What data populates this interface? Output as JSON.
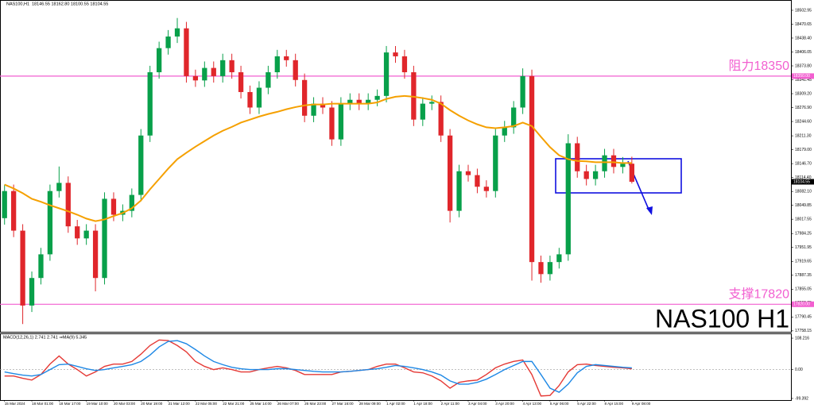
{
  "chart_data": [
    {
      "type": "candlestick",
      "title": "NAS100,H1",
      "last_bar_label": "18146.55 18162.80 18100.55 18104.55",
      "annotation": "NAS100 H1",
      "up_color": "#08a04a",
      "down_color": "#e0262b",
      "moving_average_color": "#f5a000",
      "current_price_color": "#000000",
      "xlim": [
        -0.5,
        86.5
      ],
      "ylim": [
        17756,
        18525
      ],
      "yticks": [
        18502.95,
        18470.65,
        {
          "value": 18438.4,
          "label": "18438.40"
        },
        18406.05,
        {
          "value": 18373.8,
          "label": "18373.80"
        },
        18341.45,
        {
          "value": 18309.2,
          "label": "18309.20"
        },
        {
          "value": 18276.9,
          "label": "18276.90"
        },
        {
          "value": 18244.6,
          "label": "18244.60"
        },
        {
          "value": 18211.3,
          "label": "18211.30"
        },
        {
          "value": 18179,
          "label": "18179.00"
        },
        {
          "value": 18146.7,
          "label": "18146.70"
        },
        {
          "value": 18114.4,
          "label": "18114.40"
        },
        {
          "value": 18082.1,
          "label": "18082.10"
        },
        18049.85,
        18017.55,
        17984.25,
        17951.95,
        17919.65,
        17887.35,
        17855.05,
        17822.75,
        17790.45,
        17758.15
      ],
      "hlines": [
        {
          "value": 18350,
          "label": "阻力18350",
          "price_label": "18350.00",
          "color": "#f25fd0"
        },
        {
          "value": 17820,
          "label": "支撑17820",
          "price_label": "17820.00",
          "color": "#f25fd0"
        }
      ],
      "open": [
        18020,
        18083,
        17991,
        17817,
        17881,
        17936,
        18083,
        18102,
        18001,
        17973,
        17991,
        17881,
        18065,
        18028,
        18037,
        18074,
        18212,
        18359,
        18415,
        18442,
        18461,
        18350,
        18340,
        18369,
        18350,
        18387,
        18359,
        18313,
        18277,
        18323,
        18359,
        18396,
        18387,
        18341,
        18258,
        18286,
        18277,
        18203,
        18286,
        18295,
        18286,
        18295,
        18304,
        18405,
        18396,
        18359,
        18249,
        18286,
        18290,
        18212,
        18037,
        18129,
        18120,
        18093,
        18083,
        18212,
        18231,
        18277,
        18350,
        17918,
        17890,
        17918,
        17936,
        18194,
        18129,
        18111,
        18129,
        18166,
        18139,
        18146.55
      ],
      "high": [
        18098,
        18098,
        18006,
        17896,
        17951,
        18098,
        18140,
        18117,
        18016,
        18006,
        18006,
        18080,
        18080,
        18052,
        18089,
        18227,
        18374,
        18430,
        18457,
        18485,
        18476,
        18365,
        18384,
        18384,
        18402,
        18402,
        18374,
        18328,
        18338,
        18374,
        18411,
        18411,
        18402,
        18356,
        18301,
        18301,
        18292,
        18301,
        18310,
        18310,
        18310,
        18319,
        18420,
        18420,
        18411,
        18374,
        18301,
        18305,
        18305,
        18227,
        18144,
        18144,
        18135,
        18108,
        18227,
        18246,
        18292,
        18368,
        18365,
        17933,
        17933,
        17951,
        18215,
        18209,
        18144,
        18144,
        18181,
        18181,
        18162,
        18162.8
      ],
      "low": [
        18005,
        17976,
        17774,
        17802,
        17866,
        17921,
        18068,
        17986,
        17958,
        17958,
        17850,
        17866,
        18013,
        18013,
        18022,
        18059,
        18197,
        18344,
        18400,
        18427,
        18335,
        18325,
        18325,
        18335,
        18335,
        18344,
        18298,
        18262,
        18262,
        18308,
        18344,
        18372,
        18326,
        18243,
        18243,
        18262,
        18188,
        18188,
        18271,
        18271,
        18271,
        18280,
        18289,
        18381,
        18344,
        18234,
        18234,
        18271,
        18197,
        18010,
        18022,
        18105,
        18078,
        18068,
        18068,
        18197,
        18216,
        18262,
        17875,
        17870,
        17875,
        17903,
        17921,
        18114,
        18096,
        18096,
        18114,
        18124,
        18124,
        18100.55
      ],
      "close": [
        18083,
        17991,
        17817,
        17881,
        17936,
        18083,
        18102,
        18001,
        17973,
        17991,
        17881,
        18065,
        18028,
        18037,
        18074,
        18212,
        18359,
        18415,
        18442,
        18461,
        18350,
        18340,
        18369,
        18350,
        18387,
        18359,
        18313,
        18277,
        18323,
        18359,
        18396,
        18387,
        18341,
        18258,
        18286,
        18277,
        18203,
        18286,
        18295,
        18286,
        18295,
        18304,
        18405,
        18396,
        18359,
        18249,
        18286,
        18290,
        18212,
        18037,
        18129,
        18120,
        18093,
        18083,
        18212,
        18231,
        18277,
        18350,
        17918,
        17890,
        17918,
        17936,
        18194,
        18129,
        18111,
        18129,
        18166,
        18139,
        18146.55,
        18104.55
      ],
      "moving_average": [
        18098,
        18089,
        18078,
        18065,
        18058,
        18050,
        18043,
        18036,
        18028,
        18019,
        18013,
        18017,
        18025,
        18032,
        18043,
        18061,
        18087,
        18111,
        18135,
        18157,
        18172,
        18186,
        18199,
        18212,
        18223,
        18232,
        18242,
        18249,
        18256,
        18262,
        18267,
        18273,
        18278,
        18282,
        18284,
        18284,
        18286,
        18286,
        18286,
        18286,
        18286,
        18289,
        18297,
        18302,
        18304,
        18302,
        18299,
        18295,
        18286,
        18271,
        18258,
        18247,
        18238,
        18231,
        18229,
        18231,
        18234,
        18242,
        18234,
        18209,
        18185,
        18166,
        18157,
        18153,
        18152,
        18150,
        18150,
        18150,
        18148,
        18148
      ]
    },
    {
      "type": "line",
      "title": "MACD(12,26,1) 2.741 2.741 ⇒MA(9) 5.345",
      "xlim": [
        -0.5,
        86.5
      ],
      "ylim": [
        -105,
        122
      ],
      "yticks": [
        108.216,
        {
          "value": 0,
          "label": "0.00"
        },
        -99.392
      ],
      "series": [
        {
          "color": "#e53935",
          "values": [
            -22,
            -22,
            -30,
            -36,
            -17,
            19,
            47,
            19,
            0,
            -22,
            -8,
            11,
            19,
            19,
            28,
            53,
            83,
            102,
            100,
            83,
            61,
            28,
            11,
            0,
            6,
            0,
            -8,
            -8,
            0,
            6,
            11,
            6,
            -3,
            -17,
            -17,
            -17,
            -17,
            -8,
            -6,
            -3,
            0,
            11,
            19,
            19,
            6,
            -8,
            -11,
            -22,
            -39,
            -64,
            -44,
            -39,
            -36,
            -17,
            6,
            19,
            28,
            33,
            -17,
            -91,
            -89,
            -55,
            -8,
            17,
            19,
            14,
            11,
            8,
            6,
            3
          ]
        },
        {
          "color": "#1e88e5",
          "values": [
            -8,
            -14,
            -19,
            -22,
            -17,
            0,
            17,
            19,
            11,
            3,
            -3,
            0,
            6,
            11,
            17,
            28,
            50,
            78,
            97,
            100,
            89,
            69,
            47,
            28,
            17,
            8,
            3,
            0,
            0,
            0,
            3,
            3,
            0,
            -3,
            -6,
            -8,
            -8,
            -8,
            -6,
            -3,
            0,
            3,
            8,
            14,
            11,
            6,
            0,
            -8,
            -19,
            -39,
            -50,
            -50,
            -44,
            -33,
            -17,
            0,
            14,
            28,
            28,
            -17,
            -64,
            -78,
            -50,
            -11,
            11,
            17,
            14,
            11,
            8,
            6
          ]
        }
      ],
      "xticks": [
        {
          "value": 0,
          "label": "15 Mar 2024"
        },
        {
          "value": 3,
          "label": "18 Mar 01:00"
        },
        {
          "value": 6,
          "label": "18 Mar 17:00"
        },
        {
          "value": 9,
          "label": "19 Mar 10:00"
        },
        {
          "value": 12,
          "label": "20 Mar 03:00"
        },
        {
          "value": 15,
          "label": "20 Mar 19:00"
        },
        {
          "value": 18,
          "label": "21 Mar 12:00"
        },
        {
          "value": 21,
          "label": "22 Mar 05:00"
        },
        {
          "value": 24,
          "label": "22 Mar 21:00"
        },
        {
          "value": 27,
          "label": "25 Mar 14:00"
        },
        {
          "value": 30,
          "label": "26 Mar 07:00"
        },
        {
          "value": 33,
          "label": "26 Mar 23:00"
        },
        {
          "value": 36,
          "label": "27 Mar 16:00"
        },
        {
          "value": 39,
          "label": "28 Mar 09:00"
        },
        {
          "value": 42,
          "label": "1 Apr 02:00"
        },
        {
          "value": 45,
          "label": "1 Apr 18:00"
        },
        {
          "value": 48,
          "label": "2 Apr 11:00"
        },
        {
          "value": 51,
          "label": "3 Apr 04:00"
        },
        {
          "value": 54,
          "label": "3 Apr 20:00"
        },
        {
          "value": 57,
          "label": "4 Apr 13:00"
        },
        {
          "value": 60,
          "label": "5 Apr 06:00"
        },
        {
          "value": 63,
          "label": "5 Apr 22:00"
        },
        {
          "value": 66,
          "label": "8 Apr 15:00"
        },
        {
          "value": 69,
          "label": "9 Apr 08:00"
        }
      ]
    }
  ]
}
